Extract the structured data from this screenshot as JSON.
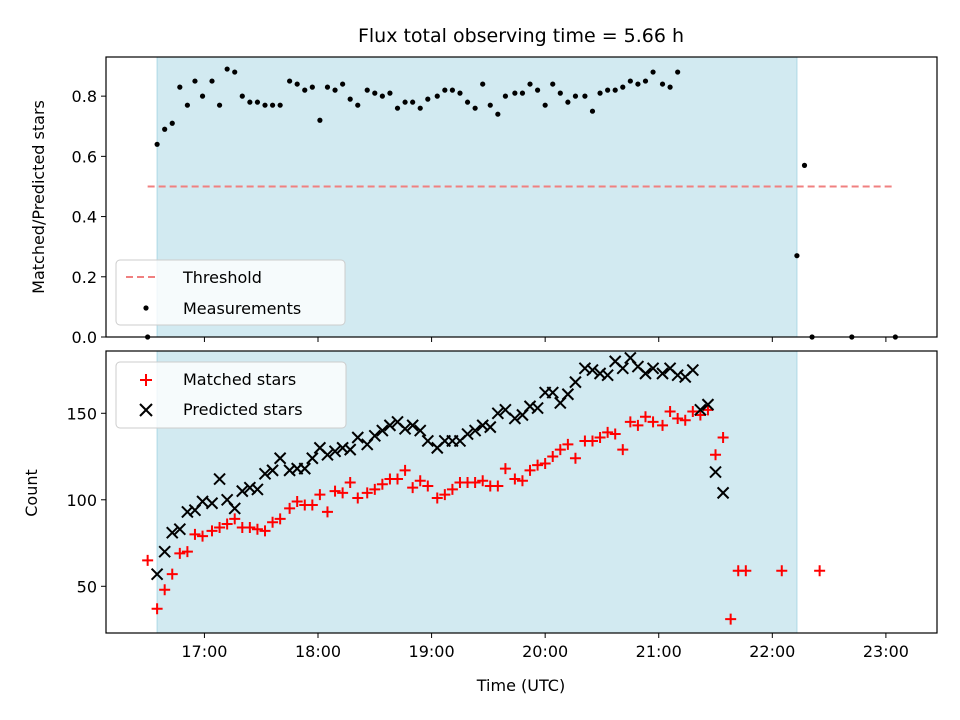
{
  "chart_data": [
    {
      "type": "scatter",
      "title": "Flux total observing time = 5.66 h",
      "xlabel": "",
      "ylabel": "Matched/Predicted stars",
      "xlim": [
        "16:08",
        "23:27"
      ],
      "ylim": [
        0.0,
        0.93
      ],
      "yticks": [
        0.0,
        0.2,
        0.4,
        0.6,
        0.8
      ],
      "xticks": [
        "17:00",
        "18:00",
        "19:00",
        "20:00",
        "21:00",
        "22:00",
        "23:00"
      ],
      "show_xtick_labels": false,
      "grid": false,
      "legend_position": "lower-left",
      "shaded_span": [
        "16:35",
        "22:13"
      ],
      "shade_color": "#add8e6",
      "threshold": {
        "name": "Threshold",
        "y": 0.5,
        "x_range": [
          "16:30",
          "23:05"
        ],
        "color": "#f08080",
        "style": "dashed"
      },
      "series": [
        {
          "name": "Measurements",
          "marker": "dot",
          "color": "#000000",
          "points": [
            [
              "16:30",
              0.0
            ],
            [
              "16:35",
              0.64
            ],
            [
              "16:39",
              0.69
            ],
            [
              "16:43",
              0.71
            ],
            [
              "16:47",
              0.83
            ],
            [
              "16:51",
              0.77
            ],
            [
              "16:55",
              0.85
            ],
            [
              "16:59",
              0.8
            ],
            [
              "17:04",
              0.85
            ],
            [
              "17:08",
              0.77
            ],
            [
              "17:12",
              0.89
            ],
            [
              "17:16",
              0.88
            ],
            [
              "17:20",
              0.8
            ],
            [
              "17:24",
              0.78
            ],
            [
              "17:28",
              0.78
            ],
            [
              "17:32",
              0.77
            ],
            [
              "17:36",
              0.77
            ],
            [
              "17:40",
              0.77
            ],
            [
              "17:45",
              0.85
            ],
            [
              "17:49",
              0.84
            ],
            [
              "17:53",
              0.82
            ],
            [
              "17:57",
              0.83
            ],
            [
              "18:01",
              0.72
            ],
            [
              "18:05",
              0.83
            ],
            [
              "18:09",
              0.82
            ],
            [
              "18:13",
              0.84
            ],
            [
              "18:17",
              0.79
            ],
            [
              "18:21",
              0.77
            ],
            [
              "18:26",
              0.82
            ],
            [
              "18:30",
              0.81
            ],
            [
              "18:34",
              0.8
            ],
            [
              "18:38",
              0.81
            ],
            [
              "18:42",
              0.76
            ],
            [
              "18:46",
              0.78
            ],
            [
              "18:50",
              0.78
            ],
            [
              "18:54",
              0.76
            ],
            [
              "18:58",
              0.79
            ],
            [
              "19:03",
              0.8
            ],
            [
              "19:07",
              0.82
            ],
            [
              "19:11",
              0.82
            ],
            [
              "19:15",
              0.81
            ],
            [
              "19:19",
              0.78
            ],
            [
              "19:23",
              0.76
            ],
            [
              "19:27",
              0.84
            ],
            [
              "19:31",
              0.77
            ],
            [
              "19:35",
              0.74
            ],
            [
              "19:39",
              0.8
            ],
            [
              "19:44",
              0.81
            ],
            [
              "19:48",
              0.81
            ],
            [
              "19:52",
              0.84
            ],
            [
              "19:56",
              0.82
            ],
            [
              "20:00",
              0.77
            ],
            [
              "20:04",
              0.84
            ],
            [
              "20:08",
              0.81
            ],
            [
              "20:12",
              0.78
            ],
            [
              "20:16",
              0.8
            ],
            [
              "20:21",
              0.8
            ],
            [
              "20:25",
              0.75
            ],
            [
              "20:29",
              0.81
            ],
            [
              "20:33",
              0.82
            ],
            [
              "20:37",
              0.82
            ],
            [
              "20:41",
              0.83
            ],
            [
              "20:45",
              0.85
            ],
            [
              "20:49",
              0.84
            ],
            [
              "20:53",
              0.85
            ],
            [
              "20:57",
              0.88
            ],
            [
              "21:02",
              0.84
            ],
            [
              "21:06",
              0.83
            ],
            [
              "21:10",
              0.88
            ],
            [
              "22:13",
              0.27
            ],
            [
              "22:17",
              0.57
            ],
            [
              "22:21",
              0.0
            ],
            [
              "22:42",
              0.0
            ],
            [
              "23:05",
              0.0
            ]
          ]
        }
      ]
    },
    {
      "type": "scatter",
      "title": "",
      "xlabel": "Time (UTC)",
      "ylabel": "Count",
      "xlim": [
        "16:08",
        "23:27"
      ],
      "ylim": [
        23,
        186
      ],
      "yticks": [
        50,
        100,
        150
      ],
      "xticks": [
        "17:00",
        "18:00",
        "19:00",
        "20:00",
        "21:00",
        "22:00",
        "23:00"
      ],
      "grid": false,
      "legend_position": "upper-left",
      "shaded_span": [
        "16:35",
        "22:13"
      ],
      "shade_color": "#add8e6",
      "series": [
        {
          "name": "Matched stars",
          "marker": "plus",
          "color": "#ff0000",
          "points": [
            [
              "16:30",
              65
            ],
            [
              "16:35",
              37
            ],
            [
              "16:39",
              48
            ],
            [
              "16:43",
              57
            ],
            [
              "16:47",
              69
            ],
            [
              "16:51",
              70
            ],
            [
              "16:55",
              80
            ],
            [
              "16:59",
              79
            ],
            [
              "17:04",
              82
            ],
            [
              "17:08",
              84
            ],
            [
              "17:12",
              86
            ],
            [
              "17:16",
              89
            ],
            [
              "17:20",
              84
            ],
            [
              "17:24",
              84
            ],
            [
              "17:28",
              83
            ],
            [
              "17:32",
              82
            ],
            [
              "17:36",
              87
            ],
            [
              "17:40",
              89
            ],
            [
              "17:45",
              95
            ],
            [
              "17:49",
              99
            ],
            [
              "17:53",
              97
            ],
            [
              "17:57",
              97
            ],
            [
              "18:01",
              103
            ],
            [
              "18:05",
              93
            ],
            [
              "18:09",
              105
            ],
            [
              "18:13",
              104
            ],
            [
              "18:17",
              110
            ],
            [
              "18:21",
              101
            ],
            [
              "18:26",
              104
            ],
            [
              "18:30",
              106
            ],
            [
              "18:34",
              109
            ],
            [
              "18:38",
              112
            ],
            [
              "18:42",
              112
            ],
            [
              "18:46",
              117
            ],
            [
              "18:50",
              107
            ],
            [
              "18:54",
              111
            ],
            [
              "18:58",
              108
            ],
            [
              "19:03",
              101
            ],
            [
              "19:07",
              103
            ],
            [
              "19:11",
              106
            ],
            [
              "19:15",
              110
            ],
            [
              "19:19",
              110
            ],
            [
              "19:23",
              110
            ],
            [
              "19:27",
              111
            ],
            [
              "19:31",
              108
            ],
            [
              "19:35",
              108
            ],
            [
              "19:39",
              118
            ],
            [
              "19:44",
              112
            ],
            [
              "19:48",
              111
            ],
            [
              "19:52",
              117
            ],
            [
              "19:56",
              120
            ],
            [
              "20:00",
              121
            ],
            [
              "20:04",
              125
            ],
            [
              "20:08",
              129
            ],
            [
              "20:12",
              132
            ],
            [
              "20:16",
              124
            ],
            [
              "20:21",
              134
            ],
            [
              "20:25",
              134
            ],
            [
              "20:29",
              136
            ],
            [
              "20:33",
              139
            ],
            [
              "20:37",
              138
            ],
            [
              "20:41",
              129
            ],
            [
              "20:45",
              145
            ],
            [
              "20:49",
              143
            ],
            [
              "20:53",
              148
            ],
            [
              "20:57",
              145
            ],
            [
              "21:02",
              143
            ],
            [
              "21:06",
              151
            ],
            [
              "21:10",
              147
            ],
            [
              "21:14",
              146
            ],
            [
              "21:18",
              151
            ],
            [
              "21:22",
              149
            ],
            [
              "21:26",
              152
            ],
            [
              "21:30",
              126
            ],
            [
              "21:34",
              136
            ],
            [
              "21:38",
              31
            ],
            [
              "21:42",
              59
            ],
            [
              "21:46",
              59
            ],
            [
              "22:05",
              59
            ],
            [
              "22:25",
              59
            ]
          ]
        },
        {
          "name": "Predicted stars",
          "marker": "x",
          "color": "#000000",
          "points": [
            [
              "16:35",
              57
            ],
            [
              "16:39",
              70
            ],
            [
              "16:43",
              81
            ],
            [
              "16:47",
              83
            ],
            [
              "16:51",
              93
            ],
            [
              "16:55",
              94
            ],
            [
              "16:59",
              99
            ],
            [
              "17:04",
              98
            ],
            [
              "17:08",
              112
            ],
            [
              "17:12",
              100
            ],
            [
              "17:16",
              95
            ],
            [
              "17:20",
              105
            ],
            [
              "17:24",
              107
            ],
            [
              "17:28",
              106
            ],
            [
              "17:32",
              115
            ],
            [
              "17:36",
              117
            ],
            [
              "17:40",
              124
            ],
            [
              "17:45",
              117
            ],
            [
              "17:49",
              118
            ],
            [
              "17:53",
              118
            ],
            [
              "17:57",
              124
            ],
            [
              "18:01",
              130
            ],
            [
              "18:05",
              126
            ],
            [
              "18:09",
              128
            ],
            [
              "18:13",
              130
            ],
            [
              "18:17",
              129
            ],
            [
              "18:21",
              136
            ],
            [
              "18:26",
              132
            ],
            [
              "18:30",
              137
            ],
            [
              "18:34",
              140
            ],
            [
              "18:38",
              143
            ],
            [
              "18:42",
              145
            ],
            [
              "18:46",
              141
            ],
            [
              "18:50",
              143
            ],
            [
              "18:54",
              140
            ],
            [
              "18:58",
              134
            ],
            [
              "19:03",
              130
            ],
            [
              "19:07",
              134
            ],
            [
              "19:11",
              134
            ],
            [
              "19:15",
              134
            ],
            [
              "19:19",
              138
            ],
            [
              "19:23",
              140
            ],
            [
              "19:27",
              143
            ],
            [
              "19:31",
              142
            ],
            [
              "19:35",
              150
            ],
            [
              "19:39",
              152
            ],
            [
              "19:44",
              147
            ],
            [
              "19:48",
              149
            ],
            [
              "19:52",
              154
            ],
            [
              "19:56",
              153
            ],
            [
              "20:00",
              162
            ],
            [
              "20:04",
              162
            ],
            [
              "20:08",
              156
            ],
            [
              "20:12",
              161
            ],
            [
              "20:16",
              168
            ],
            [
              "20:21",
              176
            ],
            [
              "20:25",
              175
            ],
            [
              "20:29",
              173
            ],
            [
              "20:33",
              172
            ],
            [
              "20:37",
              180
            ],
            [
              "20:41",
              176
            ],
            [
              "20:45",
              182
            ],
            [
              "20:49",
              177
            ],
            [
              "20:53",
              173
            ],
            [
              "20:57",
              176
            ],
            [
              "21:02",
              173
            ],
            [
              "21:06",
              176
            ],
            [
              "21:10",
              172
            ],
            [
              "21:14",
              171
            ],
            [
              "21:18",
              175
            ],
            [
              "21:22",
              152
            ],
            [
              "21:26",
              155
            ],
            [
              "21:30",
              116
            ],
            [
              "21:34",
              104
            ]
          ]
        }
      ]
    }
  ]
}
